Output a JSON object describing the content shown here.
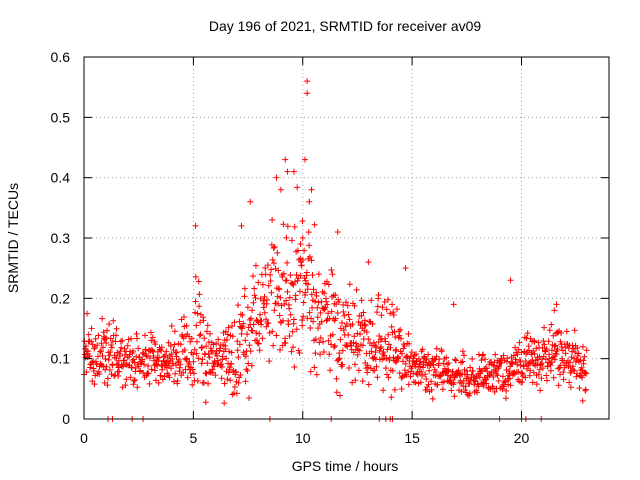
{
  "chart_data": {
    "type": "scatter",
    "title": "Day 196 of 2021, SRMTID for receiver av09",
    "xlabel": "GPS time / hours",
    "ylabel": "SRMTID / TECUs",
    "xlim": [
      0,
      24
    ],
    "ylim": [
      0,
      0.6
    ],
    "xticks": [
      0,
      5,
      10,
      15,
      20
    ],
    "yticks": [
      0,
      0.1,
      0.2,
      0.3,
      0.4,
      0.5,
      0.6
    ],
    "xtick_labels": [
      "0",
      "5",
      "10",
      "15",
      "20"
    ],
    "ytick_labels": [
      "0",
      "0.1",
      "0.2",
      "0.3",
      "0.4",
      "0.5",
      "0.6"
    ],
    "grid": true,
    "marker": "+",
    "color": "#ff0000",
    "series": [
      {
        "name": "SRMTID",
        "profile": [
          {
            "t": 0.0,
            "mean": 0.11,
            "spread": 0.03
          },
          {
            "t": 1.0,
            "mean": 0.11,
            "spread": 0.04
          },
          {
            "t": 2.0,
            "mean": 0.09,
            "spread": 0.03
          },
          {
            "t": 3.0,
            "mean": 0.1,
            "spread": 0.03
          },
          {
            "t": 4.0,
            "mean": 0.1,
            "spread": 0.035
          },
          {
            "t": 5.0,
            "mean": 0.14,
            "spread": 0.06
          },
          {
            "t": 6.0,
            "mean": 0.09,
            "spread": 0.03
          },
          {
            "t": 7.0,
            "mean": 0.12,
            "spread": 0.06
          },
          {
            "t": 8.0,
            "mean": 0.17,
            "spread": 0.07
          },
          {
            "t": 9.0,
            "mean": 0.2,
            "spread": 0.09
          },
          {
            "t": 10.0,
            "mean": 0.22,
            "spread": 0.09
          },
          {
            "t": 11.0,
            "mean": 0.17,
            "spread": 0.07
          },
          {
            "t": 12.0,
            "mean": 0.13,
            "spread": 0.06
          },
          {
            "t": 13.0,
            "mean": 0.12,
            "spread": 0.05
          },
          {
            "t": 14.0,
            "mean": 0.13,
            "spread": 0.06
          },
          {
            "t": 15.0,
            "mean": 0.09,
            "spread": 0.03
          },
          {
            "t": 16.0,
            "mean": 0.08,
            "spread": 0.03
          },
          {
            "t": 17.0,
            "mean": 0.07,
            "spread": 0.025
          },
          {
            "t": 18.0,
            "mean": 0.07,
            "spread": 0.025
          },
          {
            "t": 19.0,
            "mean": 0.08,
            "spread": 0.03
          },
          {
            "t": 20.0,
            "mean": 0.09,
            "spread": 0.03
          },
          {
            "t": 21.0,
            "mean": 0.1,
            "spread": 0.03
          },
          {
            "t": 22.0,
            "mean": 0.11,
            "spread": 0.03
          },
          {
            "t": 23.0,
            "mean": 0.08,
            "spread": 0.03
          }
        ],
        "notable_points": [
          {
            "x": 10.2,
            "y": 0.56
          },
          {
            "x": 10.2,
            "y": 0.54
          },
          {
            "x": 9.2,
            "y": 0.43
          },
          {
            "x": 9.3,
            "y": 0.41
          },
          {
            "x": 10.1,
            "y": 0.43
          },
          {
            "x": 8.8,
            "y": 0.4
          },
          {
            "x": 9.6,
            "y": 0.41
          },
          {
            "x": 10.4,
            "y": 0.38
          },
          {
            "x": 10.3,
            "y": 0.36
          },
          {
            "x": 9.0,
            "y": 0.38
          },
          {
            "x": 8.6,
            "y": 0.33
          },
          {
            "x": 7.6,
            "y": 0.36
          },
          {
            "x": 5.1,
            "y": 0.32
          },
          {
            "x": 7.2,
            "y": 0.32
          },
          {
            "x": 11.6,
            "y": 0.31
          },
          {
            "x": 14.7,
            "y": 0.25
          },
          {
            "x": 13.0,
            "y": 0.26
          },
          {
            "x": 19.5,
            "y": 0.23
          },
          {
            "x": 16.9,
            "y": 0.19
          },
          {
            "x": 21.6,
            "y": 0.19
          },
          {
            "x": 21.5,
            "y": 0.18
          },
          {
            "x": 22.8,
            "y": 0.03
          },
          {
            "x": 10.0,
            "y": 0.3
          },
          {
            "x": 9.9,
            "y": 0.29
          }
        ],
        "zero_points": [
          1.1,
          1.3,
          2.2,
          2.7,
          8.5,
          11.3,
          13.5,
          13.8,
          14.0,
          14.1,
          19.0,
          20.0,
          20.2,
          20.9
        ]
      }
    ]
  }
}
